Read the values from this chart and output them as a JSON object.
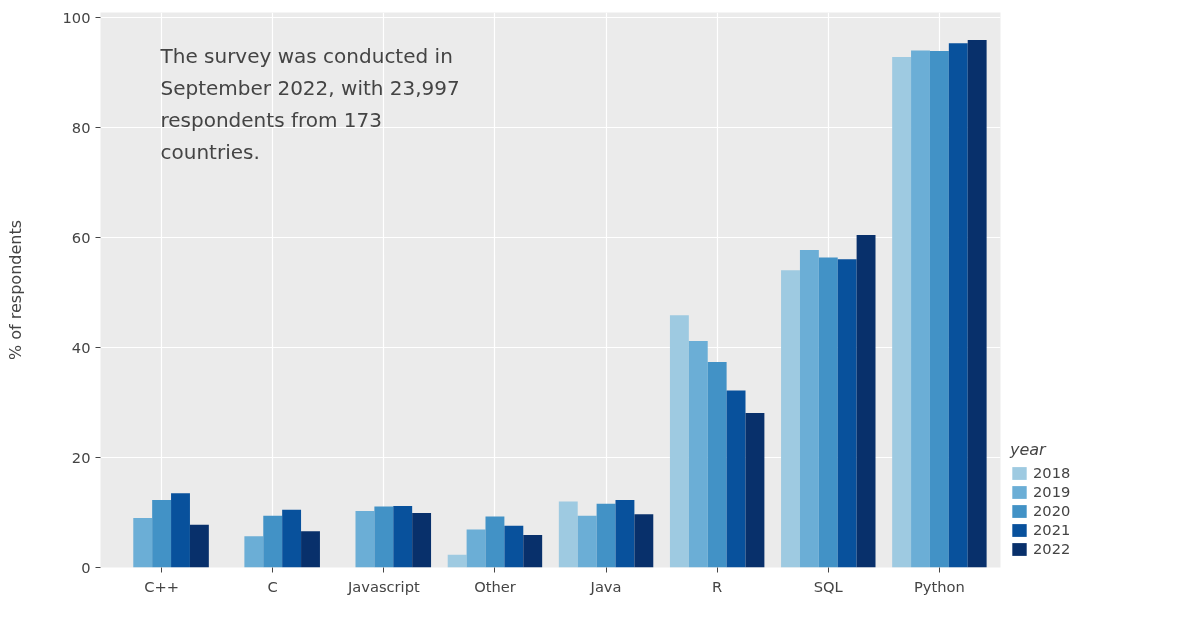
{
  "chart_data": {
    "type": "bar",
    "ylabel": "% of respondents",
    "legend_title": "year",
    "categories": [
      "C++",
      "C",
      "Javascript",
      "Other",
      "Java",
      "R",
      "SQL",
      "Python"
    ],
    "series": [
      {
        "name": "2018",
        "color": "#9ecae1",
        "values": [
          null,
          null,
          null,
          2.3,
          12.0,
          45.9,
          54.1,
          92.9
        ]
      },
      {
        "name": "2019",
        "color": "#6baed6",
        "values": [
          9.0,
          5.7,
          10.3,
          6.9,
          9.4,
          41.2,
          57.8,
          94.1
        ]
      },
      {
        "name": "2020",
        "color": "#4292c6",
        "values": [
          12.3,
          9.4,
          11.1,
          9.3,
          11.6,
          37.4,
          56.4,
          94.0
        ]
      },
      {
        "name": "2021",
        "color": "#08519c",
        "values": [
          13.5,
          10.5,
          11.2,
          7.6,
          12.3,
          32.2,
          56.1,
          95.4
        ]
      },
      {
        "name": "2022",
        "color": "#08306b",
        "values": [
          7.8,
          6.6,
          9.9,
          5.9,
          9.7,
          28.1,
          60.5,
          96.0
        ]
      }
    ],
    "ylim": [
      0,
      101
    ],
    "yticks": [
      0,
      20,
      40,
      60,
      80,
      100
    ],
    "grid": true,
    "legend": "right",
    "annotations": [
      "The survey was conducted in September 2022, with 23,997 respondents from 173 countries."
    ]
  }
}
